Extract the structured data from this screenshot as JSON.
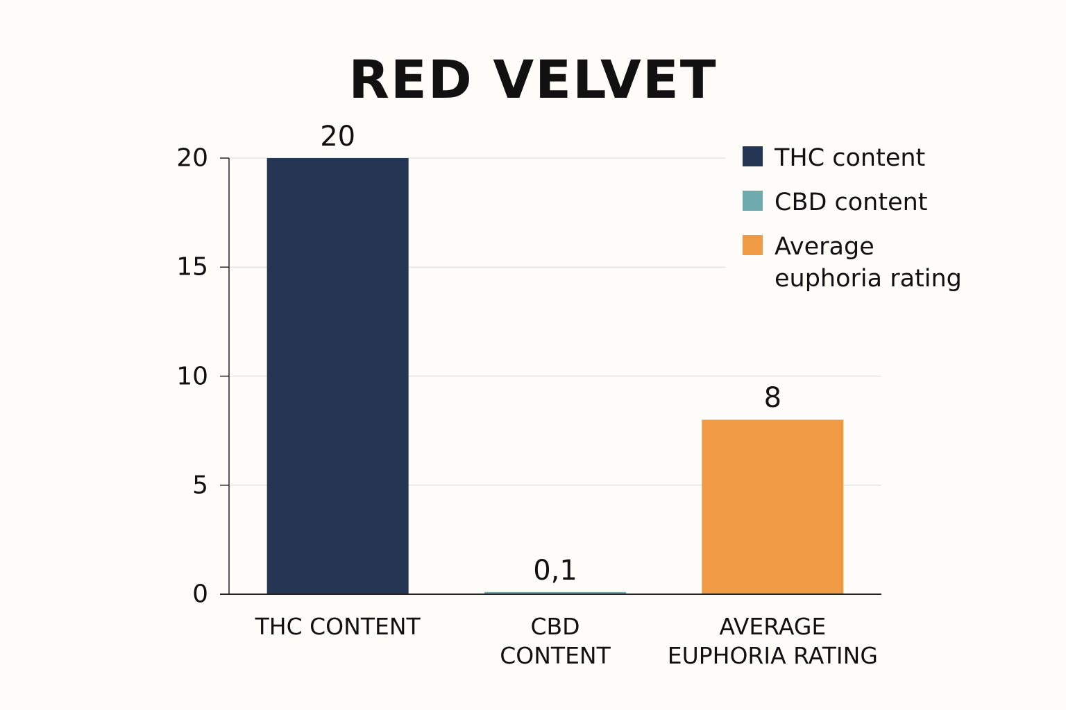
{
  "chart_data": {
    "type": "bar",
    "title": "RED VELVET",
    "categories": [
      "THC CONTENT",
      "CBD CONTENT",
      "AVERAGE EUPHORIA RATING"
    ],
    "values": [
      20,
      0.1,
      8
    ],
    "value_labels": [
      "20",
      "0,1",
      "8"
    ],
    "colors": [
      "#253554",
      "#6eaaae",
      "#ef9b45"
    ],
    "legend": [
      "THC content",
      "CBD content",
      "Average euphoria rating"
    ],
    "ylim": [
      0,
      20
    ],
    "yticks": [
      0,
      5,
      10,
      15,
      20
    ],
    "grid": true
  }
}
